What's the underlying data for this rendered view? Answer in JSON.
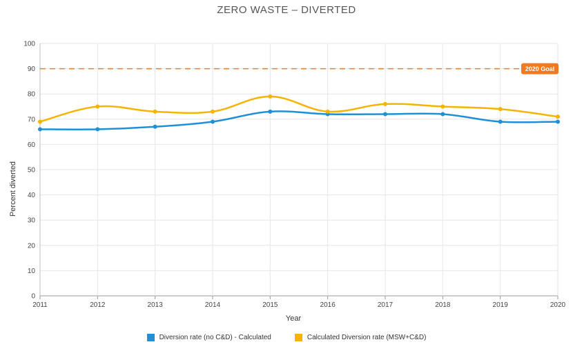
{
  "chart_data": {
    "type": "line",
    "title": "ZERO WASTE – DIVERTED",
    "xlabel": "Year",
    "ylabel": "Percent diverted",
    "x": [
      "2011",
      "2012",
      "2013",
      "2014",
      "2015",
      "2016",
      "2017",
      "2018",
      "2019",
      "2020"
    ],
    "ylim": [
      0,
      100
    ],
    "yticks": [
      0,
      10,
      20,
      30,
      40,
      50,
      60,
      70,
      80,
      90,
      100
    ],
    "grid": true,
    "legend_position": "bottom",
    "series": [
      {
        "name": "Diversion rate (no C&D) - Calculated",
        "color": "#1f8fd6",
        "values": [
          66,
          66,
          67,
          69,
          73,
          72,
          72,
          72,
          69,
          69
        ]
      },
      {
        "name": "Calculated Diversion rate (MSW+C&D)",
        "color": "#f5b400",
        "values": [
          69,
          75,
          73,
          73,
          79,
          73,
          76,
          75,
          74,
          71
        ]
      }
    ],
    "goal_line": {
      "value": 90,
      "label": "2020 Goal",
      "color": "#f07a22"
    }
  }
}
